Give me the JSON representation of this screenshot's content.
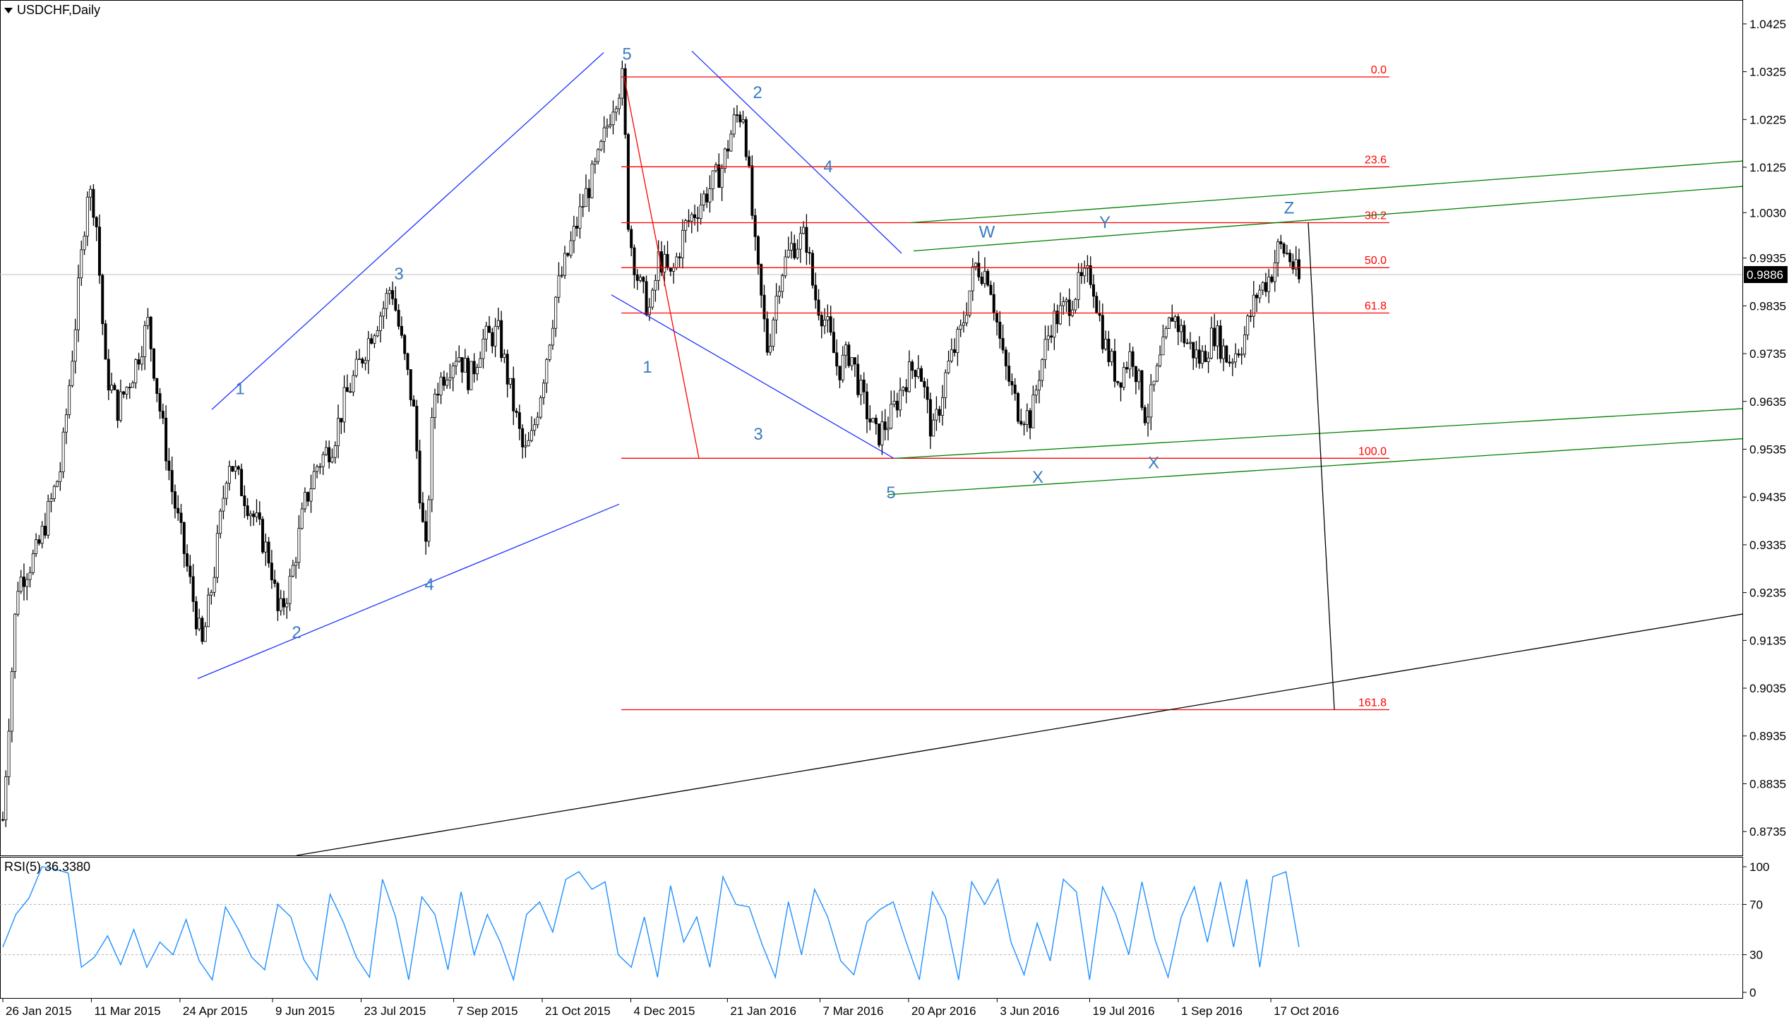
{
  "header": {
    "symbol_label": "USDCHF,Daily"
  },
  "rsi_panel": {
    "label": "RSI(5) 36.3380"
  },
  "colors": {
    "wave": "#1f33ff",
    "fib": "#ff0000",
    "channel": "#008000",
    "rsi": "#1e90ff",
    "trend": "#000000"
  },
  "chart_data": [
    {
      "type": "candlestick",
      "title": "USDCHF,Daily",
      "ylim": [
        0.8685,
        1.0475
      ],
      "y_ticks": [
        "1.0425",
        "1.0325",
        "1.0225",
        "1.0125",
        "1.0030",
        "0.9935",
        "0.9835",
        "0.9735",
        "0.9635",
        "0.9535",
        "0.9435",
        "0.9335",
        "0.9235",
        "0.9135",
        "0.9035",
        "0.8935",
        "0.8835",
        "0.8735"
      ],
      "x_ticks": [
        "26 Jan 2015",
        "11 Mar 2015",
        "24 Apr 2015",
        "9 Jun 2015",
        "23 Jul 2015",
        "7 Sep 2015",
        "21 Oct 2015",
        "4 Dec 2015",
        "21 Jan 2016",
        "7 Mar 2016",
        "20 Apr 2016",
        "3 Jun 2016",
        "19 Jul 2016",
        "1 Sep 2016",
        "17 Oct 2016"
      ],
      "current_price": "0.9886",
      "price_path": [
        [
          "26 Jan 2015",
          0.876
        ],
        [
          "2 Feb 2015",
          0.925
        ],
        [
          "12 Feb 2015",
          0.932
        ],
        [
          "24 Feb 2015",
          0.95
        ],
        [
          "4 Mar 2015",
          0.984
        ],
        [
          "9 Mar 2015",
          1.008
        ],
        [
          "13 Mar 2015",
          1.004
        ],
        [
          "18 Mar 2015",
          0.97
        ],
        [
          "24 Mar 2015",
          0.962
        ],
        [
          "1 Apr 2015",
          0.97
        ],
        [
          "8 Apr 2015",
          0.98
        ],
        [
          "14 Apr 2015",
          0.962
        ],
        [
          "20 Apr 2015",
          0.945
        ],
        [
          "27 Apr 2015",
          0.93
        ],
        [
          "5 May 2015",
          0.912
        ],
        [
          "11 May 2015",
          0.928
        ],
        [
          "18 May 2015",
          0.952
        ],
        [
          "25 May 2015",
          0.945
        ],
        [
          "1 Jun 2015",
          0.938
        ],
        [
          "8 Jun 2015",
          0.93
        ],
        [
          "12 Jun 2015",
          0.918
        ],
        [
          "18 Jun 2015",
          0.926
        ],
        [
          "25 Jun 2015",
          0.942
        ],
        [
          "1 Jul 2015",
          0.95
        ],
        [
          "9 Jul 2015",
          0.955
        ],
        [
          "15 Jul 2015",
          0.964
        ],
        [
          "21 Jul 2015",
          0.97
        ],
        [
          "28 Jul 2015",
          0.978
        ],
        [
          "3 Aug 2015",
          0.983
        ],
        [
          "7 Aug 2015",
          0.988
        ],
        [
          "12 Aug 2015",
          0.976
        ],
        [
          "18 Aug 2015",
          0.962
        ],
        [
          "24 Aug 2015",
          0.93
        ],
        [
          "28 Aug 2015",
          0.965
        ],
        [
          "3 Sep 2015",
          0.97
        ],
        [
          "9 Sep 2015",
          0.974
        ],
        [
          "15 Sep 2015",
          0.968
        ],
        [
          "21 Sep 2015",
          0.976
        ],
        [
          "29 Sep 2015",
          0.978
        ],
        [
          "6 Oct 2015",
          0.964
        ],
        [
          "12 Oct 2015",
          0.952
        ],
        [
          "16 Oct 2015",
          0.956
        ],
        [
          "22 Oct 2015",
          0.97
        ],
        [
          "28 Oct 2015",
          0.986
        ],
        [
          "4 Nov 2015",
          0.996
        ],
        [
          "11 Nov 2015",
          1.006
        ],
        [
          "18 Nov 2015",
          1.014
        ],
        [
          "25 Nov 2015",
          1.026
        ],
        [
          "30 Nov 2015",
          1.031
        ],
        [
          "3 Dec 2015",
          0.999
        ],
        [
          "8 Dec 2015",
          0.988
        ],
        [
          "14 Dec 2015",
          0.982
        ],
        [
          "18 Dec 2015",
          0.994
        ],
        [
          "24 Dec 2015",
          0.989
        ],
        [
          "31 Dec 2015",
          1.0
        ],
        [
          "6 Jan 2016",
          1.004
        ],
        [
          "12 Jan 2016",
          1.008
        ],
        [
          "18 Jan 2016",
          1.012
        ],
        [
          "25 Jan 2016",
          1.023
        ],
        [
          "29 Jan 2016",
          1.024
        ],
        [
          "4 Feb 2016",
          0.994
        ],
        [
          "10 Feb 2016",
          0.974
        ],
        [
          "16 Feb 2016",
          0.99
        ],
        [
          "22 Feb 2016",
          0.996
        ],
        [
          "29 Feb 2016",
          0.998
        ],
        [
          "4 Mar 2016",
          0.986
        ],
        [
          "10 Mar 2016",
          0.98
        ],
        [
          "16 Mar 2016",
          0.97
        ],
        [
          "22 Mar 2016",
          0.974
        ],
        [
          "28 Mar 2016",
          0.964
        ],
        [
          "4 Apr 2016",
          0.956
        ],
        [
          "11 Apr 2016",
          0.96
        ],
        [
          "18 Apr 2016",
          0.968
        ],
        [
          "25 Apr 2016",
          0.972
        ],
        [
          "2 May 2016",
          0.956
        ],
        [
          "9 May 2016",
          0.97
        ],
        [
          "16 May 2016",
          0.978
        ],
        [
          "23 May 2016",
          0.992
        ],
        [
          "30 May 2016",
          0.99
        ],
        [
          "6 Jun 2016",
          0.972
        ],
        [
          "13 Jun 2016",
          0.962
        ],
        [
          "20 Jun 2016",
          0.96
        ],
        [
          "24 Jun 2016",
          0.97
        ],
        [
          "30 Jun 2016",
          0.98
        ],
        [
          "7 Jul 2016",
          0.983
        ],
        [
          "14 Jul 2016",
          0.988
        ],
        [
          "20 Jul 2016",
          0.99
        ],
        [
          "26 Jul 2016",
          0.976
        ],
        [
          "2 Aug 2016",
          0.968
        ],
        [
          "9 Aug 2016",
          0.974
        ],
        [
          "16 Aug 2016",
          0.96
        ],
        [
          "22 Aug 2016",
          0.97
        ],
        [
          "29 Aug 2016",
          0.982
        ],
        [
          "5 Sep 2016",
          0.976
        ],
        [
          "12 Sep 2016",
          0.972
        ],
        [
          "19 Sep 2016",
          0.978
        ],
        [
          "26 Sep 2016",
          0.972
        ],
        [
          "3 Oct 2016",
          0.976
        ],
        [
          "10 Oct 2016",
          0.986
        ],
        [
          "17 Oct 2016",
          0.99
        ],
        [
          "21 Oct 2016",
          0.996
        ],
        [
          "26 Oct 2016",
          0.994
        ],
        [
          "31 Oct 2016",
          0.9886
        ]
      ],
      "fibonacci": [
        {
          "label": "0.0",
          "price": 1.0314
        },
        {
          "label": "23.6",
          "price": 1.0126
        },
        {
          "label": "38.2",
          "price": 1.0009
        },
        {
          "label": "50.0",
          "price": 0.9915
        },
        {
          "label": "61.8",
          "price": 0.982
        },
        {
          "label": "100.0",
          "price": 0.9516
        },
        {
          "label": "161.8",
          "price": 0.899
        }
      ],
      "wave_labels": [
        "1",
        "2",
        "3",
        "4",
        "5",
        "2",
        "4",
        "1",
        "3",
        "5",
        "W",
        "Y",
        "Z",
        "X",
        "X"
      ],
      "grid": false
    },
    {
      "type": "line",
      "title": "RSI(5) 36.3380",
      "ylim": [
        0,
        100
      ],
      "y_ticks": [
        "100",
        "70",
        "30",
        "0"
      ],
      "values": [
        36,
        62,
        75,
        100,
        98,
        95,
        20,
        28,
        45,
        22,
        50,
        20,
        40,
        30,
        58,
        25,
        10,
        68,
        50,
        28,
        18,
        70,
        60,
        26,
        10,
        78,
        56,
        28,
        12,
        90,
        60,
        10,
        76,
        62,
        18,
        80,
        30,
        62,
        40,
        10,
        62,
        72,
        48,
        90,
        96,
        82,
        88,
        30,
        20,
        60,
        12,
        85,
        40,
        60,
        20,
        92,
        70,
        68,
        38,
        12,
        72,
        30,
        82,
        60,
        25,
        14,
        56,
        66,
        72,
        40,
        10,
        80,
        60,
        10,
        88,
        70,
        90,
        40,
        14,
        55,
        25,
        90,
        80,
        10,
        84,
        62,
        30,
        88,
        42,
        12,
        60,
        84,
        40,
        88,
        36,
        90,
        20,
        92,
        96,
        36
      ]
    }
  ]
}
